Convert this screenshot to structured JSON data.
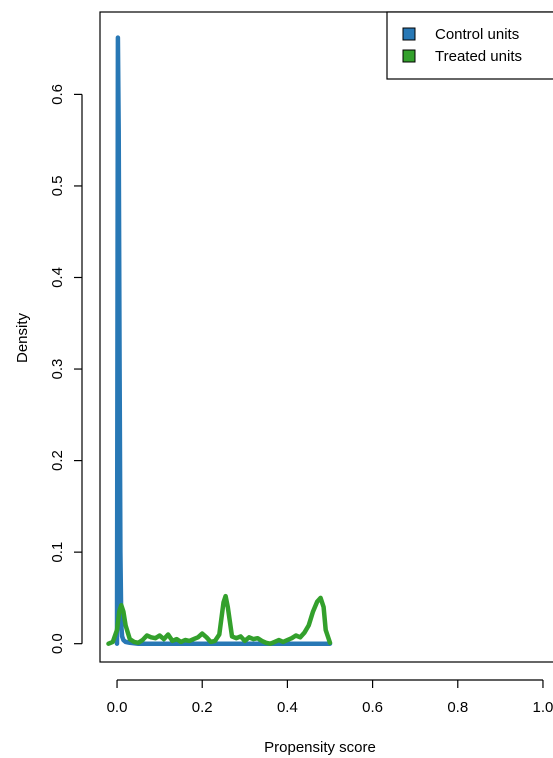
{
  "chart_data": {
    "type": "line",
    "title": "",
    "xlabel": "Propensity score",
    "ylabel": "Density",
    "xlim": [
      -0.04,
      1.04
    ],
    "ylim": [
      -0.02,
      0.69
    ],
    "xticks": [
      0.0,
      0.2,
      0.4,
      0.6,
      0.8,
      1.0
    ],
    "xtick_labels": [
      "0.0",
      "0.2",
      "0.4",
      "0.6",
      "0.8",
      "1.0"
    ],
    "yticks": [
      0.0,
      0.1,
      0.2,
      0.3,
      0.4,
      0.5,
      0.6
    ],
    "ytick_labels": [
      "0.0",
      "0.1",
      "0.2",
      "0.3",
      "0.4",
      "0.5",
      "0.6"
    ],
    "grid": false,
    "legend_position": "top-right",
    "series": [
      {
        "name": "Control units",
        "color": "#2878b5",
        "x": [
          0.0,
          0.002,
          0.004,
          0.006,
          0.008,
          0.01,
          0.012,
          0.015,
          0.02,
          0.03,
          0.05,
          0.1,
          0.2,
          0.3,
          0.4,
          0.5
        ],
        "y": [
          0.0,
          0.662,
          0.56,
          0.3,
          0.1,
          0.02,
          0.008,
          0.004,
          0.002,
          0.001,
          0.0,
          0.0,
          0.0,
          0.0,
          0.0,
          0.0
        ]
      },
      {
        "name": "Treated units",
        "color": "#33a02c",
        "x": [
          -0.02,
          -0.01,
          0.0,
          0.005,
          0.01,
          0.015,
          0.02,
          0.03,
          0.04,
          0.05,
          0.06,
          0.07,
          0.08,
          0.09,
          0.1,
          0.11,
          0.12,
          0.13,
          0.14,
          0.15,
          0.16,
          0.17,
          0.18,
          0.19,
          0.2,
          0.21,
          0.22,
          0.23,
          0.24,
          0.25,
          0.255,
          0.26,
          0.27,
          0.28,
          0.29,
          0.3,
          0.31,
          0.32,
          0.33,
          0.34,
          0.35,
          0.36,
          0.37,
          0.38,
          0.39,
          0.4,
          0.41,
          0.42,
          0.43,
          0.44,
          0.45,
          0.46,
          0.47,
          0.478,
          0.485,
          0.49,
          0.5
        ],
        "y": [
          0.0,
          0.002,
          0.015,
          0.035,
          0.042,
          0.035,
          0.02,
          0.005,
          0.002,
          0.001,
          0.004,
          0.009,
          0.007,
          0.006,
          0.009,
          0.005,
          0.01,
          0.003,
          0.005,
          0.002,
          0.004,
          0.003,
          0.005,
          0.007,
          0.011,
          0.007,
          0.002,
          0.003,
          0.01,
          0.045,
          0.052,
          0.04,
          0.008,
          0.006,
          0.008,
          0.003,
          0.007,
          0.005,
          0.006,
          0.003,
          0.001,
          0.0,
          0.002,
          0.004,
          0.002,
          0.004,
          0.006,
          0.009,
          0.007,
          0.012,
          0.02,
          0.035,
          0.046,
          0.05,
          0.04,
          0.015,
          0.001
        ]
      }
    ]
  }
}
